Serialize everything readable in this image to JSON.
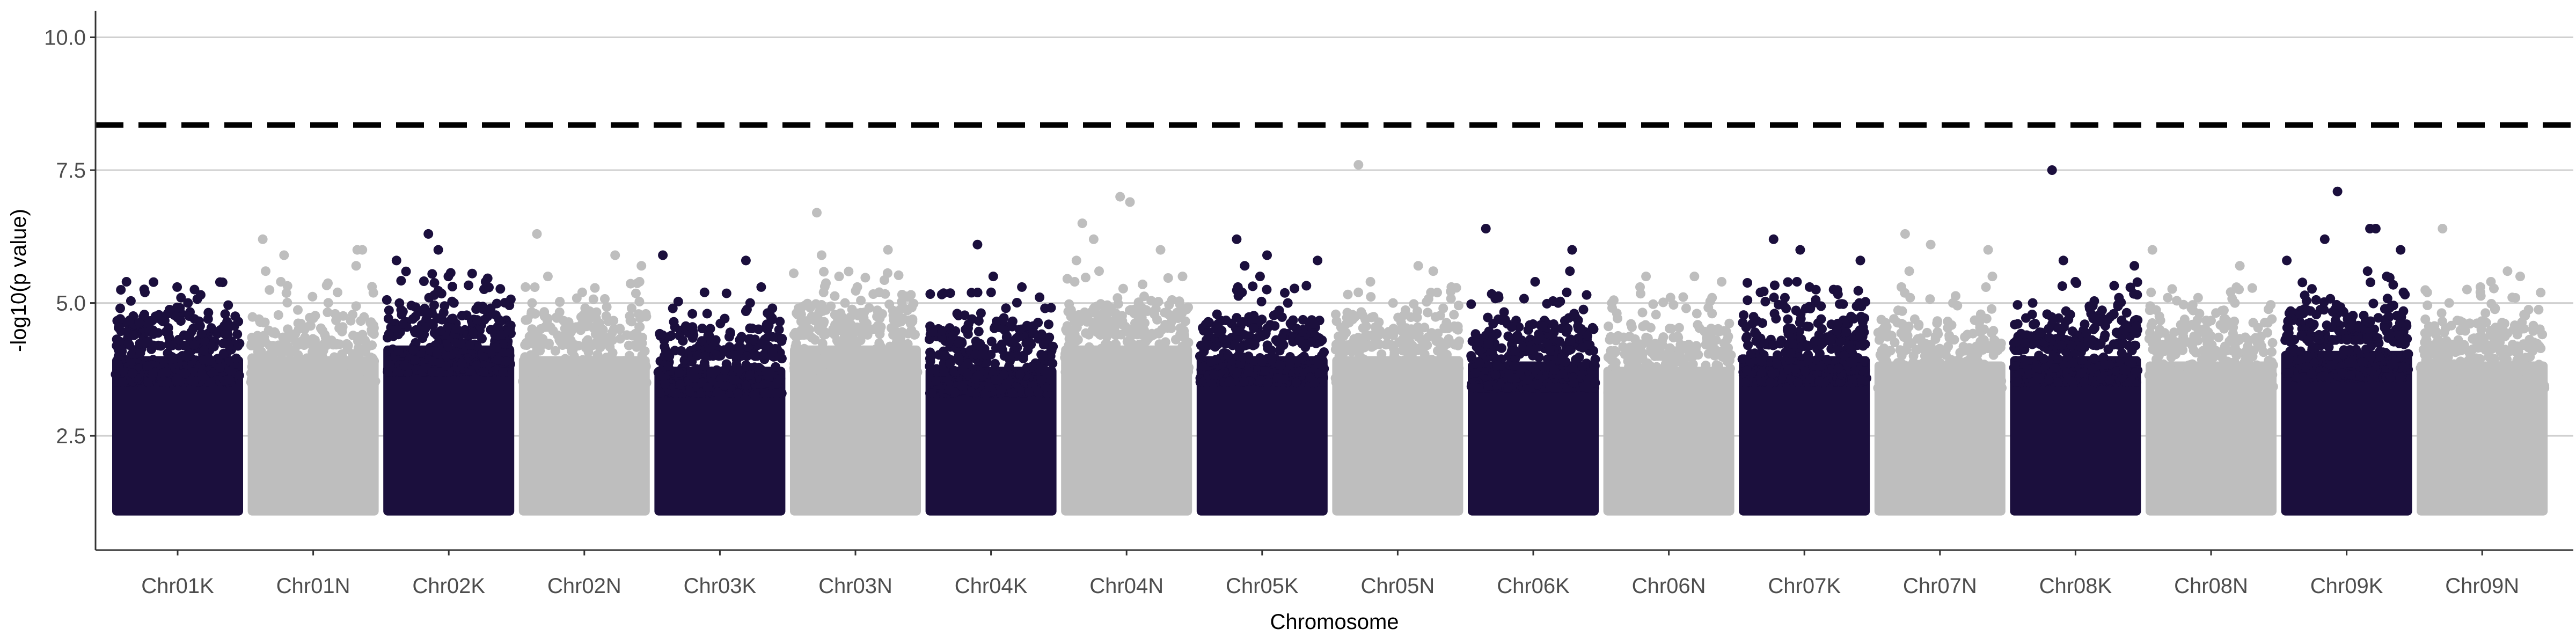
{
  "chart_data": {
    "type": "scatter",
    "subtype": "manhattan",
    "xlabel": "Chromosome",
    "ylabel": "-log10(p value)",
    "ylim": [
      0.35,
      10.5
    ],
    "yticks": [
      2.5,
      5.0,
      7.5,
      10.0
    ],
    "ytick_labels": [
      "2.5",
      "5.0",
      "7.5",
      "10.0"
    ],
    "grid": {
      "horizontal_major": true,
      "vertical": false
    },
    "threshold": {
      "y": 8.35,
      "style": "dashed",
      "color": "#000000"
    },
    "colors": {
      "odd": "#1b0f3d",
      "even": "#bebebe"
    },
    "categories": [
      "Chr01K",
      "Chr01N",
      "Chr02K",
      "Chr02N",
      "Chr03K",
      "Chr03N",
      "Chr04K",
      "Chr04N",
      "Chr05K",
      "Chr05N",
      "Chr06K",
      "Chr06N",
      "Chr07K",
      "Chr07N",
      "Chr08K",
      "Chr08N",
      "Chr09K",
      "Chr09N"
    ],
    "chromosomes": [
      {
        "name": "Chr01K",
        "min_p": 1.0,
        "typical_max": 4.0,
        "top_values": [
          5.4,
          5.3,
          5.2,
          5.1,
          5.0,
          4.9,
          4.8,
          4.7
        ]
      },
      {
        "name": "Chr01N",
        "min_p": 1.0,
        "typical_max": 4.0,
        "top_values": [
          6.2,
          6.0,
          6.0,
          5.9,
          5.7,
          5.6,
          5.4,
          5.2
        ]
      },
      {
        "name": "Chr02K",
        "min_p": 1.0,
        "typical_max": 4.2,
        "top_values": [
          6.3,
          6.0,
          5.8,
          5.5,
          5.4,
          5.1,
          5.0,
          4.9
        ]
      },
      {
        "name": "Chr02N",
        "min_p": 1.0,
        "typical_max": 4.0,
        "top_values": [
          6.3,
          5.9,
          5.7,
          5.5,
          5.4,
          5.3,
          5.2,
          5.0
        ]
      },
      {
        "name": "Chr03K",
        "min_p": 1.0,
        "typical_max": 3.8,
        "top_values": [
          5.9,
          5.8,
          5.3,
          5.2,
          5.0,
          4.9,
          4.8,
          4.6
        ]
      },
      {
        "name": "Chr03N",
        "min_p": 1.0,
        "typical_max": 4.2,
        "top_values": [
          6.7,
          6.0,
          5.9,
          5.5,
          5.3,
          5.2,
          5.0,
          4.9
        ]
      },
      {
        "name": "Chr04K",
        "min_p": 1.0,
        "typical_max": 3.8,
        "top_values": [
          6.1,
          5.5,
          5.3,
          5.2,
          4.9,
          4.8,
          4.6,
          4.5
        ]
      },
      {
        "name": "Chr04N",
        "min_p": 1.0,
        "typical_max": 4.2,
        "top_values": [
          7.0,
          6.9,
          6.5,
          6.2,
          6.0,
          5.8,
          5.6,
          5.5
        ]
      },
      {
        "name": "Chr05K",
        "min_p": 1.0,
        "typical_max": 4.0,
        "top_values": [
          6.2,
          5.9,
          5.8,
          5.7,
          5.5,
          5.3,
          5.2,
          5.0
        ]
      },
      {
        "name": "Chr05N",
        "min_p": 1.0,
        "typical_max": 4.0,
        "top_values": [
          7.6,
          5.7,
          5.6,
          5.4,
          5.3,
          5.2,
          5.0,
          4.9
        ]
      },
      {
        "name": "Chr06K",
        "min_p": 1.0,
        "typical_max": 3.9,
        "top_values": [
          6.4,
          6.0,
          5.6,
          5.4,
          5.2,
          5.1,
          5.0,
          4.8
        ]
      },
      {
        "name": "Chr06N",
        "min_p": 1.0,
        "typical_max": 3.8,
        "top_values": [
          5.5,
          5.5,
          5.4,
          5.3,
          5.1,
          5.0,
          4.9,
          4.8
        ]
      },
      {
        "name": "Chr07K",
        "min_p": 1.0,
        "typical_max": 4.0,
        "top_values": [
          6.2,
          6.0,
          5.8,
          5.4,
          5.3,
          5.2,
          5.1,
          5.0
        ]
      },
      {
        "name": "Chr07N",
        "min_p": 1.0,
        "typical_max": 3.9,
        "top_values": [
          6.3,
          6.1,
          6.0,
          5.6,
          5.5,
          5.3,
          5.1,
          5.0
        ]
      },
      {
        "name": "Chr08K",
        "min_p": 1.0,
        "typical_max": 4.0,
        "top_values": [
          7.5,
          5.8,
          5.7,
          5.4,
          5.1,
          5.0,
          4.9,
          4.8
        ]
      },
      {
        "name": "Chr08N",
        "min_p": 1.0,
        "typical_max": 3.9,
        "top_values": [
          6.0,
          5.7,
          5.2,
          5.1,
          5.0,
          4.9,
          4.8,
          4.7
        ]
      },
      {
        "name": "Chr09K",
        "min_p": 1.0,
        "typical_max": 4.1,
        "top_values": [
          7.1,
          6.4,
          6.4,
          6.2,
          6.0,
          5.8,
          5.6,
          5.5
        ]
      },
      {
        "name": "Chr09N",
        "min_p": 1.0,
        "typical_max": 3.9,
        "top_values": [
          6.4,
          5.6,
          5.5,
          5.4,
          5.3,
          5.2,
          5.0,
          4.9
        ]
      }
    ]
  }
}
